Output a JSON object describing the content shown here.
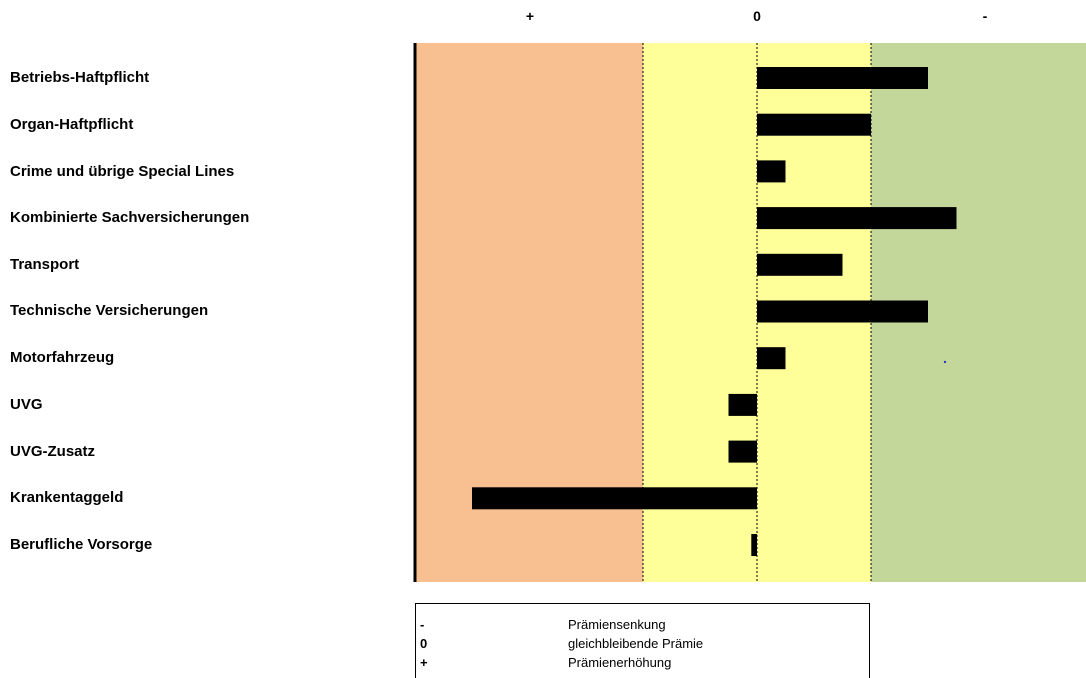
{
  "chart_data": {
    "type": "bar",
    "orientation": "horizontal",
    "axis_labels": [
      "+",
      "0",
      "-"
    ],
    "categories": [
      "Betriebs-Haftpflicht",
      "Organ-Haftpflicht",
      "Crime und übrige Special Lines",
      "Kombinierte Sachversicherungen",
      "Transport",
      "Technische Versicherungen",
      "Motorfahrzeug",
      "UVG",
      "UVG-Zusatz",
      "Krankentaggeld",
      "Berufliche Vorsorge"
    ],
    "values": [
      -1.5,
      -1.0,
      -0.25,
      -1.75,
      -0.75,
      -1.5,
      -0.25,
      0.25,
      0.25,
      2.5,
      0.05
    ],
    "xlim": [
      3.0,
      -3.0
    ],
    "zones": [
      {
        "from": 3.0,
        "to": 1.0,
        "color": "#f8bf90"
      },
      {
        "from": 1.0,
        "to": -1.0,
        "color": "#ffff99"
      },
      {
        "from": -1.0,
        "to": -3.0,
        "color": "#c4d79b"
      }
    ],
    "dotted_lines": [
      1.0,
      0.0,
      -1.0
    ]
  },
  "legend": [
    {
      "symbol": "-",
      "text": "Prämiensenkung"
    },
    {
      "symbol": "0",
      "text": "gleichbleibende Prämie"
    },
    {
      "symbol": "+",
      "text": "Prämienerhöhung"
    }
  ]
}
